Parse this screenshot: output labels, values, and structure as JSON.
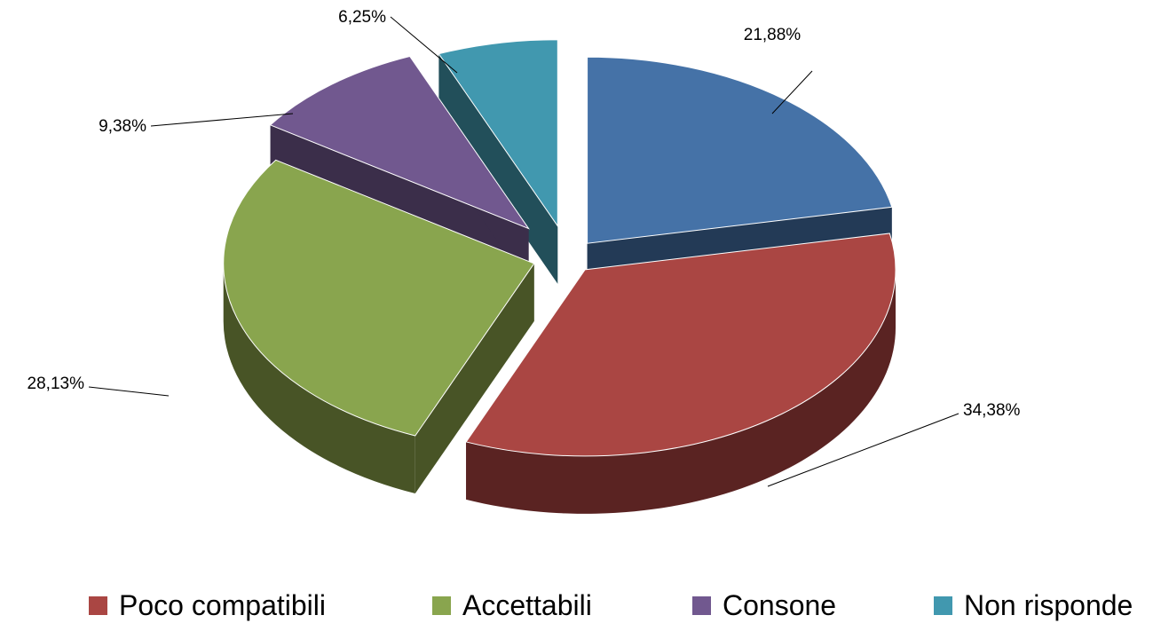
{
  "chart_data": {
    "type": "pie",
    "style": "3d-exploded",
    "slices": [
      {
        "name": "",
        "value": 21.88,
        "label": "21,88%",
        "color": "#4572A7",
        "side_color": "#233A56"
      },
      {
        "name": "Poco compatibili",
        "value": 34.38,
        "label": "34,38%",
        "color": "#AA4643",
        "side_color": "#5A2322"
      },
      {
        "name": "Accettabili",
        "value": 28.13,
        "label": "28,13%",
        "color": "#89A54E",
        "side_color": "#485426"
      },
      {
        "name": "Consone",
        "value": 9.38,
        "label": "9,38%",
        "color": "#71588F",
        "side_color": "#3B2E4A"
      },
      {
        "name": "Non risponde",
        "value": 6.25,
        "label": "6,25%",
        "color": "#4198AF",
        "side_color": "#224F5A"
      }
    ],
    "legend": {
      "placement": "bottom",
      "items": [
        {
          "label": "Poco compatibili",
          "color": "#AA4643"
        },
        {
          "label": "Accettabili",
          "color": "#89A54E"
        },
        {
          "label": "Consone",
          "color": "#71588F"
        },
        {
          "label": "Non risponde",
          "color": "#4198AF"
        }
      ]
    }
  }
}
